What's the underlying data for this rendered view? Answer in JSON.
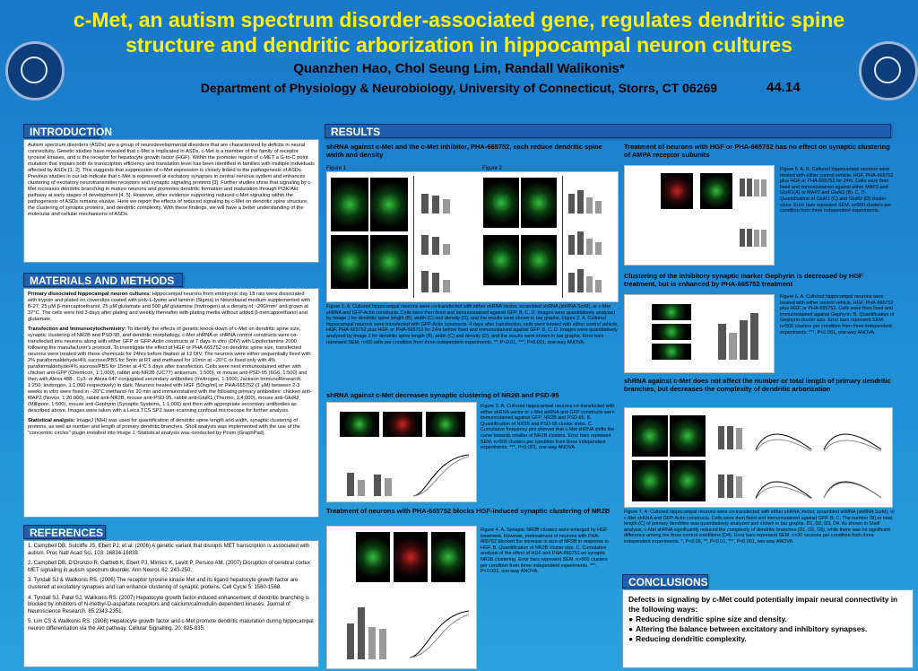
{
  "header": {
    "title": "c-Met, an autism spectrum disorder-associated gene, regulates dendritic spine structure and dendritic arborization in hippocampal neuron cultures",
    "authors": "Quanzhen Hao, Chol Seung Lim, Randall Walikonis*",
    "department": "Department of Physiology & Neurobiology, University of Connecticut, Storrs, CT 06269",
    "poster_number": "44.14"
  },
  "sections": {
    "introduction": "INTRODUCTION",
    "methods": "MATERIALS AND METHODS",
    "references": "REFERENCES",
    "results": "RESULTS",
    "conclusions": "CONCLUSIONS"
  },
  "introduction": {
    "text": "Autism spectrum disorders (ASDs) are a group of neurodevelopmental disorders that are characterized by deficits in neural connectivity. Genetic studies have revealed that c-Met is implicated in ASDs. c-Met is a member of the family of receptor tyrosine kinases, and is the receptor for hepatocyte growth factor (HGF). Within the promoter region of c-MET a G-to-C point mutation that impairs both its transcription efficiency and translation level has been identified in families with multiple individuals affected by ASDs [1, 2]. This suggests that suppression of c-Met expression is closely linked to the pathogenesis of ASDs. Previous studies in our lab indicate that c-Met is expressed at excitatory synapses in central nervous system and enhances clustering of excitatory neurotransmitter receptors and synaptic signaling proteins [3]. Further studies show that signaling by c-Met increases dendritic branching in mature neurons and promotes dendritic formation and maturation through PI3K/Akt pathway at early stages of development [4, 5]. However, other evidence supporting reduced c-Met signaling within the pathogenesis of ASDs remains elusive. Here we report the effects of reduced signaling by c-Met on dendritic spine structure, the clustering of synaptic proteins, and dendritic complexity. With these findings, we will have a better understanding of the molecular and cellular mechanisms of ASDs."
  },
  "methods": {
    "p1_head": "Primary dissociated hippocampal neuron cultures:",
    "p1": " Hippocampal neurons from embryonic day 18 rats were dissociated with trypsin and plated on coverslips coated with poly-L-lysine and laminin (Sigma) in Neurobasal medium supplemented with B-27, 25 μM β-mercaptoethanol, 25 μM glutamate and 500 μM glutamine (Invitrogen) at a density of ~200/mm² and grown at 37°C. The cells were fed 3 days after plating and weekly thereafter with plating media without added β-mercaptoethanol and glutamate.",
    "p2_head": "Transfection and Immunocytochemistry:",
    "p2": " To identify the effects of genetic knock-down of c-Met on dendritic spine size, synaptic clustering of NR2B and PSD-95, and dendritic morphology, c-Met shRNA or shRNA control constructs were co-transfected into neurons along with either GFP or GFP-Actin constructs at 7 days in vitro (DIV) with Lipofectamine 2000 following the manufacturer's protocol. To investigate the effect of HGF or PHA-665752 on dendritic spine size, transfected neurons were treated with these chemicals for 24hrs before fixation at 12 DIV. The neurons were either sequentially fixed with 2% paraformaldehyde/4% sucrose/PBS for 5min at RT and methanol for 10min at −20°C or fixed only with 4% paraformaldehyde/4% sucrose/PBS for 15min at 4°C 5 days after transfection. Cells were next immunostained either with chicken anti-GFP (Chemicon, 1:1,000), rabbit anti-NR2B (UC77) antiserum, 1:500), or mouse anti-PSD-95 (6G6, 1:500) and then with Alexa 488-, Cy3- or Alexa 647-conjugated secondary antibodies (Invitrogen, 1:1000; Jackson ImmunoResearch, 1:250; Invitrogen, 1:1,000 respectively) in dark. Neurons treated with HGF (50ng/ml) or PHA-665752 (1 μM) between 2-3 weeks in vitro were fixed in −20°C methanol for 20 min and immunostained with the following primary antibodies: chicken anti-MAP2 (Novus, 1:20,000), rabbit anti-NR2B, mouse anti-PSD-95, rabbit anti-GluR1 (Thermo, 1:4,000), mouse anti-GluR2 (Millipore, 1:500), mouse anti-Gephyrin (Synaptic Systems, 1:1,000) and then with appropriate secondary antibodies as described above. Images were taken with a Leica TCS SP2 laser-scanning confocal microscope for further analysis.",
    "p3_head": "Statistical analysis:",
    "p3": " ImageJ (NIH) was used for quantification of dendritic spine length and width, synaptic clustering of proteins, as well as number and length of primary dendritic branches. Sholl analysis was implemented with the use of the \"concentric circles\" plugin installed into Image J. Statistical analysis was conducted by Prism (GraphPad)."
  },
  "references": {
    "r1": "1. Campbell DB, Sutcliffe JS, Ebert PJ, et al. (2006) A genetic variant that disrupts MET transcription is associated with autism. Proc Natl Acad Sci, 103: 16834-16839.",
    "r2": "2. Campbell DB, D'Oronzio R, Garbett K, Ebert PJ, Mirnics K, Levitt P, Persico AM. (2007) Disruption of cerebral cortex MET signaling in autism spectrum disorder. Ann Neurol. 62: 243-250.",
    "r3": "3. Tyndall SJ & Walikonis RS. (2006) The receptor tyrosine kinase Met and its ligand hepatocyte growth factor are clustered at excitatory synapses and can enhance clustering of synaptic proteins. Cell Cycle 5: 1560-1568.",
    "r4": "4. Tyndall SJ, Patel SJ, Walikonis RS. (2007) Hepatocyte growth factor-induced enhancement of dendritic branching is blocked by inhibitors of N-methyl-D-aspartate receptors and calcium/calmodulin-dependent kinases. Journal of Neuroscience Research. 85:2343-2351.",
    "r5": "5. Lim CS & Walikonis RS. (2008) Hepatocyte growth factor and c-Met promote dendritic maturation during hippocampal neuron differentiation via the Akt pathway. Cellular Signalling. 20: 825-835."
  },
  "results": {
    "h1": "shRNA against c-Met and the c-Met inhibitor, PHA-665752, each reduce dendritic spine width and density",
    "fig1": "Figure 1",
    "fig2": "Figure 2",
    "cap12": "Figure 1. A. Cultured hippocampal neurons were co-transfected with either shRNA Vector, scrambled shRNA (shRNA ScrM), or c-Met shRNA and GFP-Actin constructs. Cells were then fixed and immunostained against GFP. B, C, D. Images were quantitatively analyzed by Image J for dendritic spine length (B), width (C) and density (D), and the results were shown in bar graphs. Figure 2. A. Cultured hippocampal neurons were transfected with GFP-Actin constructs. 4 days after transfection, cells were treated with either control vehicle, HGF, PHA-665752 plus HGF, or PHA-665752 for 24hr before fixed and immunostained against GFP. B, C, D. Images were quantitatively analyzed by Image J for dendritic spine length (B), width (C) and density (D), and the results were shown in bar graphs. Error bars represent SEM. n>50 cells per condition from three independent experiments. **, P<0.01, ***, P<0.001, one-way ANOVA.",
    "h3": "shRNA against c-Met decreases synaptic clustering of NR2B and PSD-95",
    "cap3": "Figure 3. A. Cultured hippocampal neurons co-transfected with either shRNA vector or c-Met shRNA and GFP constructs were immunostained against GFP, NR2B and PSD-95. B. Quantification of NR2B and PSD-95 cluster sizes. C. Cumulative frequency plot showed that c-Met shRNA shifts the curve towards smaller of NR2B clusters. Error bars represent SEM. n>500 clusters per condition from three independent experiments. ***, P<0.001, one-way ANOVA.",
    "h4": "Treatment of neurons with PHA-665752 blocks HGF-induced synaptic clustering of NR2B",
    "cap4": "Figure 4. A. Synaptic NR2B clusters were enlarged by HGF treatment. However, pretreatment of neurons with PHA-665752 blocked the increase in size of NR2B in response to HGF. B. Quantification of NR2B cluster size. C. Cumulative analysis of the effect of HGF and PHA-665752 on synaptic NR2B clustering. Error bars represent SEM. n>500 clusters per condition from three independent experiments. ***, P<0.001, one-way ANOVA.",
    "h5": "Treatment of neurons with HGF or PHA-665752 has no effect on synaptic clustering of AMPA receptor subunits",
    "cap5": "Figure 5. A, B. Cultured hippocampal neurons were treated with either control vehicle, HGF, PHA-665752 plus HGF or PHA-665752 for 24hr. Cells were then fixed and immunostained against either MAP2 and GluR1(A) or MAP2 and GluR2 (B). C, D. Quantification of GluR1 (C) and GluR2 (D) cluster sizes. Error bars represent SEM. n>500 clusters per condition from three independent experiments.",
    "h6": "Clustering of the inhibitory synaptic marker Gephyrin is decreased by HGF treatment, but is enhanced by PHA-665752 treatment",
    "cap6": "Figure 6. A. Cultured hippocampal neurons were treated with either control vehicle, HGF, PHA-665752 plus HGF, or PHA-665752. Cells were then fixed and immunostained against Gephyrin. B. Quantification of Gephyrin cluster size. Error bars represent SEM. n>500 clusters per condition from three independent experiments. ***, P<0.001, one-way ANOVA.",
    "h7": "shRNA against c-Met does not affect the number or total length of primary dendritic branches, but decreases the complexity of dendritic arborization",
    "cap7": "Figure 7. A. Cultured hippocampal neurons were co-transfected with either shRNA Vector, scrambled shRNA (shRNA ScrM), or c-Met shRNA and GFP-Actin constructs. Cells were then fixed and immunostained against GFP. B, C. The number (B) or total length (C) of primary dendrites was quantitatively analyzed and shown in bar graphs. D1, D2, D3, D4. As shown in Sholl analysis, c-Met shRNA significantly reduced the complexity of dendritic branches (D1, D2, D3), while there was no significant difference among the three control conditions (D4). Error bars represent SEM. n>30 neurons per condition from three independent experiments. *, P<0.05, **, P<0.01, ***, P<0.001, two-way ANOVA."
  },
  "conclusions": {
    "lead": "Defects in signaling by c-Met could potentially impair neural connectivity in the following ways:",
    "items": [
      "Reducing dendritic spine size and density.",
      "Altering the balance between excitatory and inhibitory synapses.",
      "Reducing dendritic complexity."
    ]
  }
}
